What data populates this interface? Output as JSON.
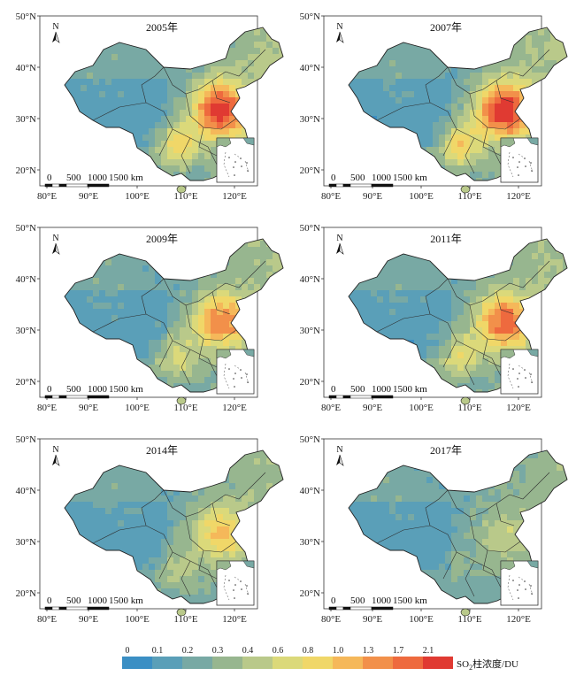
{
  "panels": [
    {
      "year": "2005年",
      "intensity": 1.0
    },
    {
      "year": "2007年",
      "intensity": 1.05
    },
    {
      "year": "2009年",
      "intensity": 0.75
    },
    {
      "year": "2011年",
      "intensity": 0.85
    },
    {
      "year": "2014年",
      "intensity": 0.55
    },
    {
      "year": "2017年",
      "intensity": 0.25
    }
  ],
  "axes": {
    "lat_labels": [
      "50°N",
      "40°N",
      "30°N",
      "20°N"
    ],
    "lon_labels": [
      "80°E",
      "90°E",
      "100°E",
      "110°E",
      "120°E"
    ]
  },
  "north_arrow": {
    "label": "N",
    "icon": "north-arrow-icon"
  },
  "scale_bar": {
    "labels": [
      "0",
      "500",
      "1000",
      "1500 km"
    ]
  },
  "legend": {
    "ticks": [
      "0",
      "0.1",
      "0.2",
      "0.3",
      "0.4",
      "0.6",
      "0.8",
      "1.0",
      "1.3",
      "1.7",
      "2.1"
    ],
    "colors": [
      "#3b8fc4",
      "#5a9fb8",
      "#78a9a4",
      "#97b68f",
      "#b9c98a",
      "#dbd97a",
      "#f0d768",
      "#f5b85a",
      "#f2904a",
      "#ee6a3e",
      "#e03a32"
    ],
    "unit_prefix": "SO",
    "unit_sub": "2",
    "unit_suffix": "柱浓度/DU"
  }
}
